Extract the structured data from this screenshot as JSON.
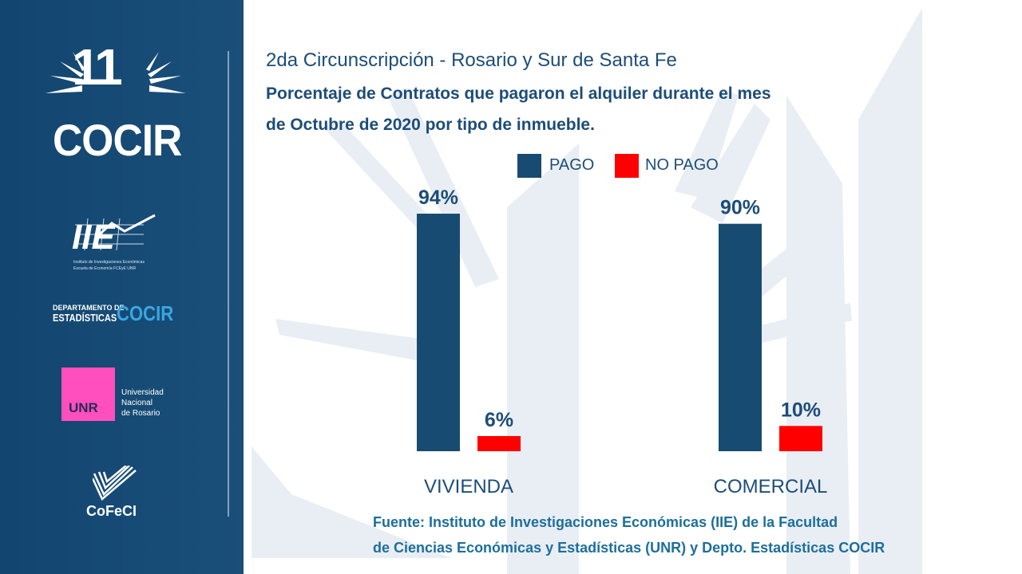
{
  "sidebar": {
    "logo_cocir": "COCIR",
    "logo_cocir_number": "11",
    "logo_iie": "IIE",
    "logo_iie_caption1": "Instituto de Investigaciones Económicas",
    "logo_iie_caption2": "Escuela de Economía FCEyE UNR",
    "dept_line1": "DEPARTAMENTO DE",
    "dept_line2": "ESTADÍSTICAS",
    "dept_brand": "COCIR",
    "unr_box": "UNR",
    "unr_line1": "Universidad",
    "unr_line2": "Nacional",
    "unr_line3": "de Rosario",
    "cofeci": "CoFeCI"
  },
  "header": {
    "subtitle": "2da Circunscripción - Rosario y Sur de Santa Fe",
    "title_line1": "Porcentaje de Contratos que pagaron el alquiler durante el mes",
    "title_line2": "de Octubre de 2020 por tipo de inmueble."
  },
  "colors": {
    "pago": "#184b72",
    "no_pago": "#ff0000",
    "text": "#1c4d78",
    "source": "#1c6f9c",
    "sidebar": "#124670"
  },
  "chart_data": {
    "type": "bar",
    "categories": [
      "VIVIENDA",
      "COMERCIAL"
    ],
    "series": [
      {
        "name": "PAGO",
        "values": [
          94,
          90
        ],
        "labels": [
          "94%",
          "90%"
        ]
      },
      {
        "name": "NO PAGO",
        "values": [
          6,
          10
        ],
        "labels": [
          "6%",
          "10%"
        ]
      }
    ],
    "ylim": [
      0,
      100
    ],
    "legend_position": "top-center",
    "grid": false
  },
  "footer": {
    "source_line1": "Fuente: Instituto de Investigaciones Económicas (IIE) de la Facultad",
    "source_line2": "de Ciencias Económicas y Estadísticas (UNR) y Depto. Estadísticas COCIR"
  }
}
